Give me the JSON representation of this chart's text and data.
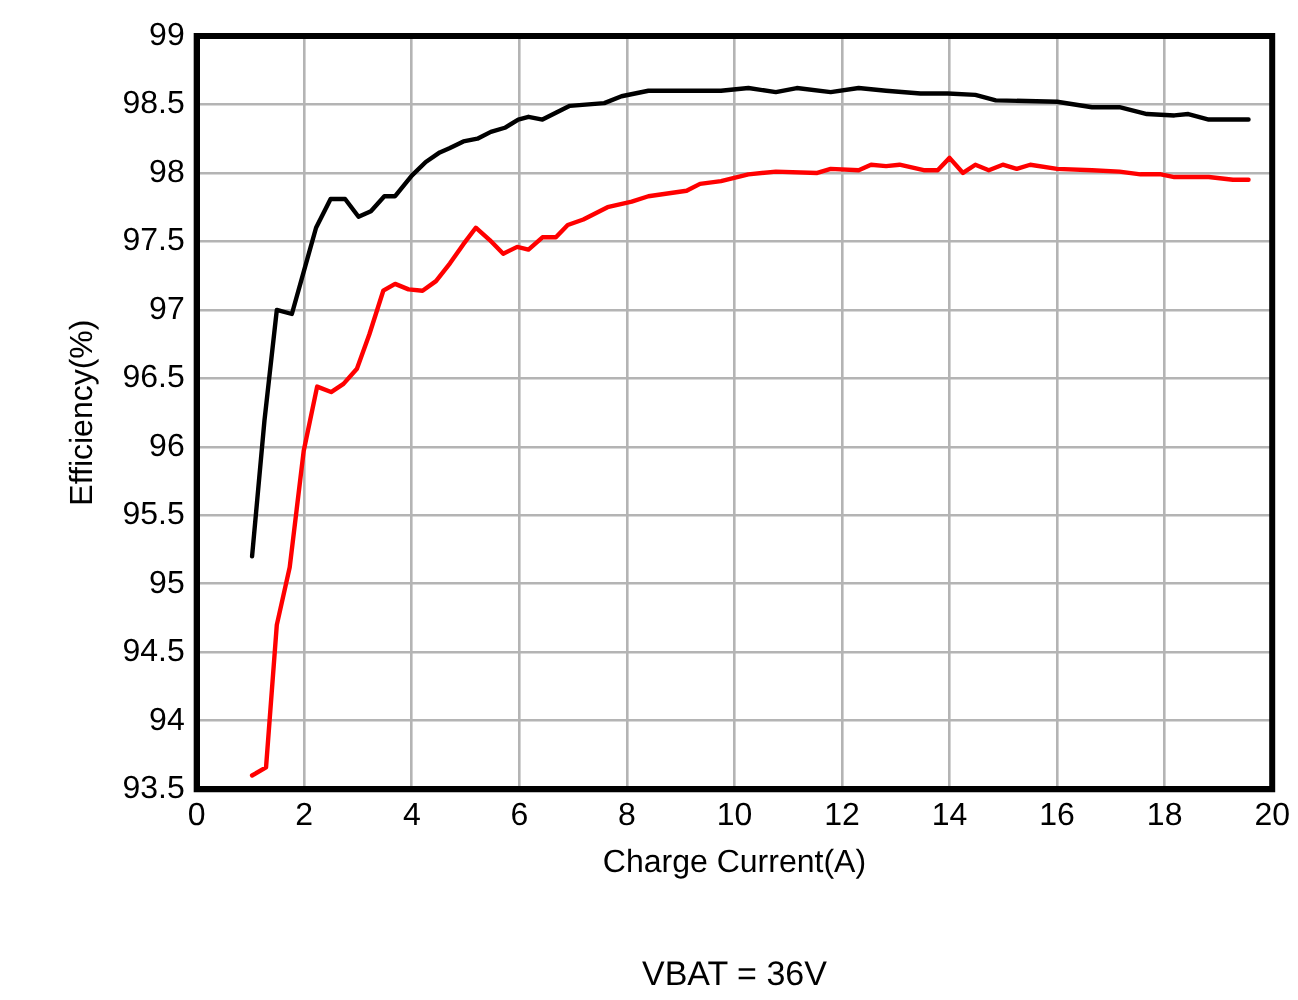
{
  "chart_data": {
    "type": "line",
    "xlabel": "Charge Current(A)",
    "ylabel": "Efficiency(%)",
    "annotations": [
      "VBAT = 36V"
    ],
    "xlim": [
      0,
      20
    ],
    "xticks": [
      0,
      2,
      4,
      6,
      8,
      10,
      12,
      14,
      16,
      18,
      20
    ],
    "ylim": [
      93.5,
      99
    ],
    "yticks": [
      93.5,
      94,
      94.5,
      95,
      95.5,
      96,
      96.5,
      97,
      97.5,
      98,
      98.5,
      99
    ],
    "grid": true,
    "legend": false,
    "marker": "none",
    "line_style": "solid",
    "series": [
      {
        "color": "#000000",
        "x": [
          1.03,
          1.26,
          1.49,
          1.77,
          2.22,
          2.49,
          2.76,
          3.01,
          3.24,
          3.49,
          3.69,
          4.0,
          4.26,
          4.52,
          4.7,
          4.96,
          5.22,
          5.47,
          5.73,
          5.98,
          6.17,
          6.43,
          6.68,
          6.94,
          7.58,
          7.9,
          8.4,
          9.75,
          10.26,
          10.77,
          11.16,
          11.79,
          12.31,
          12.82,
          13.46,
          13.97,
          14.48,
          14.86,
          16.0,
          16.65,
          17.16,
          17.67,
          18.18,
          18.44,
          18.82,
          19.56
        ],
        "values": [
          95.2,
          96.19,
          97.0,
          96.97,
          97.6,
          97.81,
          97.81,
          97.68,
          97.72,
          97.83,
          97.83,
          97.98,
          98.08,
          98.15,
          98.18,
          98.23,
          98.25,
          98.3,
          98.33,
          98.39,
          98.41,
          98.39,
          98.44,
          98.49,
          98.51,
          98.56,
          98.6,
          98.6,
          98.62,
          98.59,
          98.62,
          98.59,
          98.62,
          98.6,
          98.58,
          98.58,
          98.57,
          98.53,
          98.52,
          98.48,
          98.48,
          98.43,
          98.42,
          98.43,
          98.39,
          98.39
        ]
      },
      {
        "color": "#ff0000",
        "x": [
          1.03,
          1.29,
          1.49,
          1.73,
          1.99,
          2.24,
          2.5,
          2.73,
          2.98,
          3.21,
          3.47,
          3.69,
          3.94,
          4.2,
          4.45,
          4.71,
          4.96,
          5.19,
          5.45,
          5.7,
          5.96,
          6.17,
          6.43,
          6.68,
          6.9,
          7.19,
          7.64,
          8.09,
          8.4,
          9.11,
          9.36,
          9.75,
          10.26,
          10.77,
          11.54,
          11.79,
          12.31,
          12.54,
          12.82,
          13.07,
          13.52,
          13.78,
          14.0,
          14.25,
          14.48,
          14.73,
          14.99,
          15.25,
          15.5,
          16.0,
          16.65,
          17.16,
          17.55,
          17.93,
          18.18,
          18.82,
          19.27,
          19.56
        ],
        "values": [
          93.6,
          93.66,
          94.7,
          95.12,
          95.97,
          96.44,
          96.4,
          96.46,
          96.57,
          96.82,
          97.14,
          97.19,
          97.15,
          97.14,
          97.21,
          97.34,
          97.48,
          97.6,
          97.51,
          97.41,
          97.46,
          97.44,
          97.53,
          97.53,
          97.62,
          97.66,
          97.75,
          97.79,
          97.83,
          97.87,
          97.92,
          97.94,
          97.99,
          98.01,
          98.0,
          98.03,
          98.02,
          98.06,
          98.05,
          98.06,
          98.02,
          98.02,
          98.11,
          98.0,
          98.06,
          98.02,
          98.06,
          98.03,
          98.06,
          98.03,
          98.02,
          98.01,
          97.99,
          97.99,
          97.97,
          97.97,
          97.95,
          97.95
        ]
      }
    ]
  }
}
